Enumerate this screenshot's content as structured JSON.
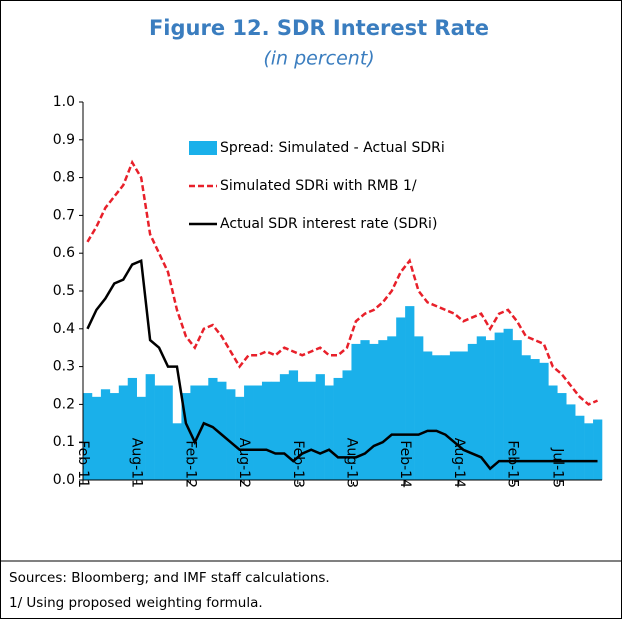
{
  "chart_data": {
    "type": "bar_line",
    "title": "Figure 12. SDR Interest Rate",
    "subtitle": "(in percent)",
    "categories": [
      "Feb-11",
      null,
      null,
      null,
      null,
      null,
      "Aug-11",
      null,
      null,
      null,
      null,
      null,
      "Feb-12",
      null,
      null,
      null,
      null,
      null,
      "Aug-12",
      null,
      null,
      null,
      null,
      null,
      "Feb-13",
      null,
      null,
      null,
      null,
      null,
      "Aug-13",
      null,
      null,
      null,
      null,
      null,
      "Feb-14",
      null,
      null,
      null,
      null,
      null,
      "Aug-14",
      null,
      null,
      null,
      null,
      null,
      "Feb-15",
      null,
      null,
      null,
      null,
      "Jul-15",
      null,
      null,
      null,
      null
    ],
    "series": [
      {
        "name": "Spread: Simulated - Actual SDRi",
        "kind": "bar",
        "color": "#1ab0ea",
        "values": [
          0.23,
          0.22,
          0.24,
          0.23,
          0.25,
          0.27,
          0.22,
          0.28,
          0.25,
          0.25,
          0.15,
          0.23,
          0.25,
          0.25,
          0.27,
          0.26,
          0.24,
          0.22,
          0.25,
          0.25,
          0.26,
          0.26,
          0.28,
          0.29,
          0.26,
          0.26,
          0.28,
          0.25,
          0.27,
          0.29,
          0.36,
          0.37,
          0.36,
          0.37,
          0.38,
          0.43,
          0.46,
          0.38,
          0.34,
          0.33,
          0.33,
          0.34,
          0.34,
          0.36,
          0.38,
          0.37,
          0.39,
          0.4,
          0.37,
          0.33,
          0.32,
          0.31,
          0.25,
          0.23,
          0.2,
          0.17,
          0.15,
          0.16
        ]
      },
      {
        "name": "Simulated SDRi with RMB 1/",
        "kind": "dashed",
        "color": "#e8202a",
        "values": [
          0.63,
          0.67,
          0.72,
          0.75,
          0.78,
          0.84,
          0.8,
          0.65,
          0.6,
          0.55,
          0.45,
          0.38,
          0.35,
          0.4,
          0.41,
          0.38,
          0.34,
          0.3,
          0.33,
          0.33,
          0.34,
          0.33,
          0.35,
          0.34,
          0.33,
          0.34,
          0.35,
          0.33,
          0.33,
          0.35,
          0.42,
          0.44,
          0.45,
          0.47,
          0.5,
          0.55,
          0.58,
          0.5,
          0.47,
          0.46,
          0.45,
          0.44,
          0.42,
          0.43,
          0.44,
          0.4,
          0.44,
          0.45,
          0.42,
          0.38,
          0.37,
          0.36,
          0.3,
          0.28,
          0.25,
          0.22,
          0.2,
          0.21
        ]
      },
      {
        "name": "Actual SDR interest rate (SDRi)",
        "kind": "line",
        "color": "#000000",
        "values": [
          0.4,
          0.45,
          0.48,
          0.52,
          0.53,
          0.57,
          0.58,
          0.37,
          0.35,
          0.3,
          0.3,
          0.15,
          0.1,
          0.15,
          0.14,
          0.12,
          0.1,
          0.08,
          0.08,
          0.08,
          0.08,
          0.07,
          0.07,
          0.05,
          0.07,
          0.08,
          0.07,
          0.08,
          0.06,
          0.06,
          0.06,
          0.07,
          0.09,
          0.1,
          0.12,
          0.12,
          0.12,
          0.12,
          0.13,
          0.13,
          0.12,
          0.1,
          0.08,
          0.07,
          0.06,
          0.03,
          0.05,
          0.05,
          0.05,
          0.05,
          0.05,
          0.05,
          0.05,
          0.05,
          0.05,
          0.05,
          0.05,
          0.05
        ]
      }
    ],
    "ylim": [
      0,
      1.0
    ],
    "yticks": [
      {
        "value": 0,
        "label": "0.0"
      },
      0.1,
      0.2,
      0.3,
      0.4,
      0.5,
      0.6,
      0.7,
      0.8,
      0.9,
      {
        "value": 1,
        "label": "1.0"
      }
    ],
    "notes": [
      "Sources: Bloomberg; and IMF staff calculations.",
      "1/ Using proposed weighting formula."
    ]
  }
}
